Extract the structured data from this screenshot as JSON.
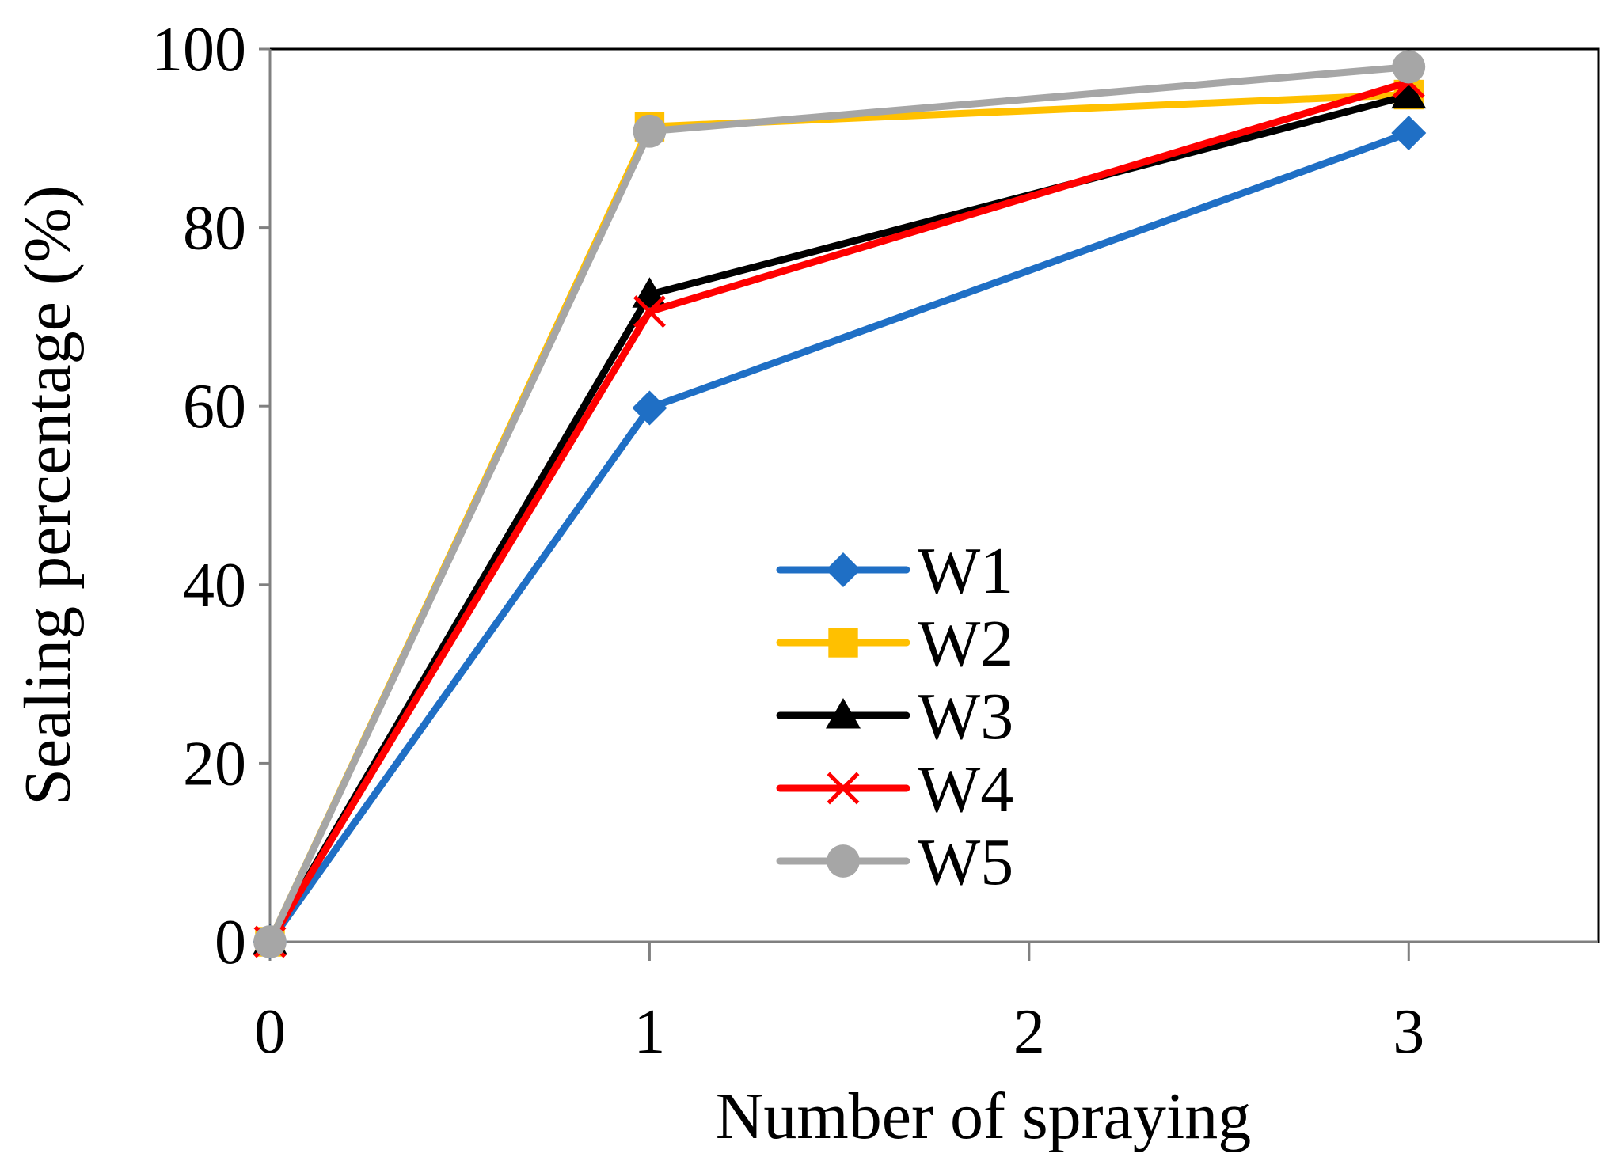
{
  "chart_data": {
    "type": "line",
    "title": "",
    "xlabel": "Number of spraying",
    "ylabel": "Sealing percentage (%)",
    "xlim": [
      0,
      3.5
    ],
    "ylim": [
      0,
      100
    ],
    "xticks": [
      0,
      1,
      2,
      3
    ],
    "yticks": [
      0,
      20,
      40,
      60,
      80,
      100
    ],
    "legend_position": "center",
    "series": [
      {
        "name": "W1",
        "color": "#1F6FC5",
        "marker": "diamond",
        "x": [
          0,
          1,
          3
        ],
        "y": [
          0,
          59.8,
          90.6
        ]
      },
      {
        "name": "W2",
        "color": "#FFC000",
        "marker": "square",
        "x": [
          0,
          1,
          3
        ],
        "y": [
          0,
          91.3,
          94.9
        ]
      },
      {
        "name": "W3",
        "color": "#000000",
        "marker": "triangle",
        "x": [
          0,
          1,
          3
        ],
        "y": [
          0,
          72.5,
          94.8
        ]
      },
      {
        "name": "W4",
        "color": "#FF0000",
        "marker": "x",
        "x": [
          0,
          1,
          3
        ],
        "y": [
          0,
          70.6,
          96.3
        ]
      },
      {
        "name": "W5",
        "color": "#A6A6A6",
        "marker": "circle",
        "x": [
          0,
          1,
          3
        ],
        "y": [
          0,
          90.8,
          98.0
        ]
      }
    ]
  }
}
